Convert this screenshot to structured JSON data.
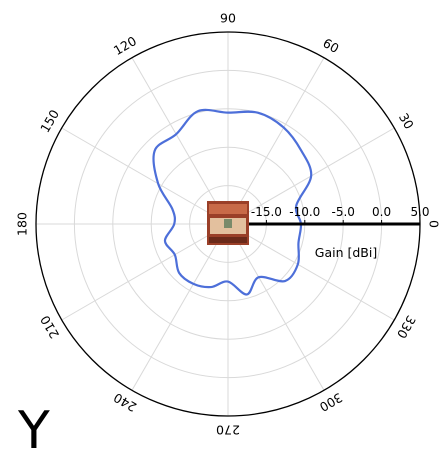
{
  "chart_data": {
    "type": "polar-line",
    "series": [
      {
        "color": "#4d6fd9",
        "angles_deg": [
          0,
          15,
          30,
          45,
          60,
          75,
          90,
          105,
          120,
          135,
          150,
          165,
          180,
          195,
          210,
          225,
          240,
          255,
          270,
          285,
          300,
          315,
          330,
          345
        ],
        "values": [
          -10.5,
          -10.8,
          -7.5,
          -6.5,
          -5.5,
          -5.0,
          -5.5,
          -4.8,
          -6.5,
          -6.5,
          -9.5,
          -12.5,
          -13.0,
          -11.5,
          -12.0,
          -11.0,
          -11.0,
          -11.5,
          -12.5,
          -10.5,
          -12.0,
          -9.5,
          -9.5,
          -10.5
        ]
      }
    ],
    "angular_ticks": [
      "0",
      "30",
      "60",
      "90",
      "120",
      "150",
      "180",
      "210",
      "240",
      "270",
      "300",
      "330"
    ],
    "radial_ticks": [
      "-15.0",
      "-10.0",
      "-5.0",
      "0.0",
      "5.0"
    ],
    "radial_range": [
      -20,
      5
    ],
    "radial_label": "Gain [dBi]",
    "grid": true
  },
  "glyph": "Y",
  "colors": {
    "series": "#4d6fd9",
    "grid": "#d9d9d9",
    "axis": "#000000"
  }
}
